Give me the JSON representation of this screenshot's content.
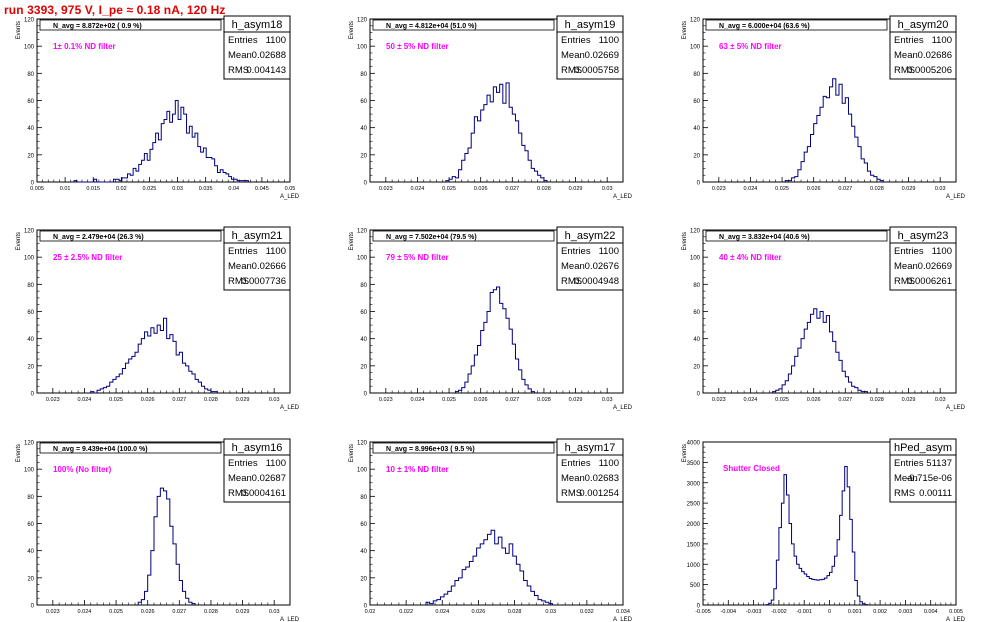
{
  "header": {
    "run_title": "run 3393,   975 V, I_pe ≈ 0.18 nA, 120 Hz"
  },
  "colors": {
    "hist_line": "#000080",
    "title_red": "#e00000",
    "annotation_magenta": "#ff00ff"
  },
  "chart_data": [
    {
      "type": "histogram",
      "name": "h_asym18",
      "ylabel": "Events",
      "xlabel": "A_LED",
      "ylim": [
        0,
        120
      ],
      "yticks": [
        0,
        20,
        40,
        60,
        80,
        100,
        120
      ],
      "xlim": [
        0.005,
        0.05
      ],
      "xticks": [
        0.005,
        0.01,
        0.015,
        0.02,
        0.025,
        0.03,
        0.035,
        0.04,
        0.045,
        0.05
      ],
      "xtick_labels": [
        "0.005",
        "0.01",
        "0.015",
        "0.02",
        "0.025",
        "0.03",
        "0.035",
        "0.04",
        "0.045",
        "0.05"
      ],
      "stats": {
        "title": "h_asym18",
        "rows": [
          [
            "Entries",
            "1100"
          ],
          [
            "Mean",
            "0.02688"
          ],
          [
            "RMS",
            "0.004143"
          ]
        ]
      },
      "n_avg": "N_avg = 8.872e+02 ( 0.9 %)",
      "filter": "1± 0.1% ND filter",
      "bins": {
        "start": 0.0116,
        "width": 0.0005,
        "counts": [
          1,
          0,
          0,
          0,
          0,
          0,
          0,
          2,
          0,
          0,
          0,
          0,
          0,
          0,
          2,
          2,
          1,
          3,
          3,
          6,
          5,
          10,
          8,
          13,
          16,
          21,
          16,
          24,
          29,
          36,
          31,
          43,
          46,
          52,
          44,
          50,
          60,
          46,
          55,
          50,
          36,
          41,
          33,
          36,
          26,
          22,
          25,
          18,
          18,
          17,
          12,
          7,
          9,
          7,
          6,
          4,
          2,
          2,
          1,
          1,
          1,
          1
        ]
      }
    },
    {
      "type": "histogram",
      "name": "h_asym19",
      "ylabel": "Events",
      "xlabel": "A_LED",
      "ylim": [
        0,
        120
      ],
      "yticks": [
        0,
        20,
        40,
        60,
        80,
        100,
        120
      ],
      "xlim": [
        0.0225,
        0.0305
      ],
      "xticks": [
        0.023,
        0.024,
        0.025,
        0.026,
        0.027,
        0.028,
        0.029,
        0.03
      ],
      "xtick_labels": [
        "0.023",
        "0.024",
        "0.025",
        "0.026",
        "0.027",
        "0.028",
        "0.029",
        "0.03"
      ],
      "stats": {
        "title": "h_asym19",
        "rows": [
          [
            "Entries",
            "1100"
          ],
          [
            "Mean",
            "0.02669"
          ],
          [
            "RMS",
            "0.0005758"
          ]
        ]
      },
      "n_avg": "N_avg = 4.812e+04 (51.0 %)",
      "filter": "50 ± 5% ND filter",
      "bins": {
        "start": 0.0249,
        "width": 0.0001,
        "counts": [
          1,
          2,
          4,
          3,
          9,
          16,
          21,
          25,
          36,
          48,
          45,
          53,
          57,
          64,
          59,
          70,
          66,
          72,
          58,
          73,
          55,
          50,
          45,
          36,
          27,
          23,
          16,
          10,
          8,
          5,
          3,
          1
        ]
      }
    },
    {
      "type": "histogram",
      "name": "h_asym20",
      "ylabel": "Events",
      "xlabel": "A_LED",
      "ylim": [
        0,
        120
      ],
      "yticks": [
        0,
        20,
        40,
        60,
        80,
        100,
        120
      ],
      "xlim": [
        0.0225,
        0.0305
      ],
      "xticks": [
        0.023,
        0.024,
        0.025,
        0.026,
        0.027,
        0.028,
        0.029,
        0.03
      ],
      "xtick_labels": [
        "0.023",
        "0.024",
        "0.025",
        "0.026",
        "0.027",
        "0.028",
        "0.029",
        "0.03"
      ],
      "stats": {
        "title": "h_asym20",
        "rows": [
          [
            "Entries",
            "1100"
          ],
          [
            "Mean",
            "0.02686"
          ],
          [
            "RMS",
            "0.0005206"
          ]
        ]
      },
      "n_avg": "N_avg = 6.000e+04 (63.6 %)",
      "filter": "63 ± 5% ND filter",
      "bins": {
        "start": 0.0251,
        "width": 0.0001,
        "counts": [
          1,
          1,
          3,
          4,
          9,
          15,
          22,
          26,
          35,
          43,
          49,
          55,
          63,
          62,
          70,
          76,
          64,
          72,
          58,
          62,
          50,
          41,
          33,
          26,
          17,
          14,
          8,
          5,
          4,
          2,
          1
        ]
      }
    },
    {
      "type": "histogram",
      "name": "h_asym21",
      "ylabel": "Events",
      "xlabel": "A_LED",
      "ylim": [
        0,
        120
      ],
      "yticks": [
        0,
        20,
        40,
        60,
        80,
        100,
        120
      ],
      "xlim": [
        0.0225,
        0.0305
      ],
      "xticks": [
        0.023,
        0.024,
        0.025,
        0.026,
        0.027,
        0.028,
        0.029,
        0.03
      ],
      "xtick_labels": [
        "0.023",
        "0.024",
        "0.025",
        "0.026",
        "0.027",
        "0.028",
        "0.029",
        "0.03"
      ],
      "stats": {
        "title": "h_asym21",
        "rows": [
          [
            "Entries",
            "1100"
          ],
          [
            "Mean",
            "0.02666"
          ],
          [
            "RMS",
            "0.0007736"
          ]
        ]
      },
      "n_avg": "N_avg = 2.479e+04 (26.3 %)",
      "filter": "25 ± 2.5% ND filter",
      "bins": {
        "start": 0.0242,
        "width": 0.0001,
        "counts": [
          1,
          0,
          2,
          3,
          4,
          5,
          8,
          10,
          12,
          14,
          18,
          22,
          25,
          27,
          30,
          36,
          40,
          45,
          42,
          48,
          44,
          50,
          46,
          55,
          40,
          43,
          38,
          28,
          30,
          22,
          20,
          16,
          14,
          10,
          8,
          5,
          3,
          2,
          1,
          1
        ]
      }
    },
    {
      "type": "histogram",
      "name": "h_asym22",
      "ylabel": "Events",
      "xlabel": "A_LED",
      "ylim": [
        0,
        120
      ],
      "yticks": [
        0,
        20,
        40,
        60,
        80,
        100,
        120
      ],
      "xlim": [
        0.0225,
        0.0305
      ],
      "xticks": [
        0.023,
        0.024,
        0.025,
        0.026,
        0.027,
        0.028,
        0.029,
        0.03
      ],
      "xtick_labels": [
        "0.023",
        "0.024",
        "0.025",
        "0.026",
        "0.027",
        "0.028",
        "0.029",
        "0.03"
      ],
      "stats": {
        "title": "h_asym22",
        "rows": [
          [
            "Entries",
            "1100"
          ],
          [
            "Mean",
            "0.02676"
          ],
          [
            "RMS",
            "0.0004948"
          ]
        ]
      },
      "n_avg": "N_avg = 7.502e+04 (79.5 %)",
      "filter": "79 ± 5% ND filter",
      "bins": {
        "start": 0.0252,
        "width": 0.0001,
        "counts": [
          1,
          2,
          4,
          8,
          14,
          20,
          28,
          35,
          46,
          52,
          60,
          74,
          76,
          78,
          66,
          62,
          55,
          47,
          36,
          25,
          17,
          10,
          6,
          3,
          1
        ]
      }
    },
    {
      "type": "histogram",
      "name": "h_asym23",
      "ylabel": "Events",
      "xlabel": "A_LED",
      "ylim": [
        0,
        120
      ],
      "yticks": [
        0,
        20,
        40,
        60,
        80,
        100,
        120
      ],
      "xlim": [
        0.0225,
        0.0305
      ],
      "xticks": [
        0.023,
        0.024,
        0.025,
        0.026,
        0.027,
        0.028,
        0.029,
        0.03
      ],
      "xtick_labels": [
        "0.023",
        "0.024",
        "0.025",
        "0.026",
        "0.027",
        "0.028",
        "0.029",
        "0.03"
      ],
      "stats": {
        "title": "h_asym23",
        "rows": [
          [
            "Entries",
            "1100"
          ],
          [
            "Mean",
            "0.02669"
          ],
          [
            "RMS",
            "0.0006261"
          ]
        ]
      },
      "n_avg": "N_avg = 3.832e+04 (40.6 %)",
      "filter": "40 ± 4% ND filter",
      "bins": {
        "start": 0.0247,
        "width": 0.0001,
        "counts": [
          1,
          2,
          3,
          6,
          9,
          14,
          20,
          27,
          33,
          40,
          47,
          52,
          58,
          62,
          55,
          60,
          52,
          57,
          45,
          38,
          30,
          24,
          16,
          12,
          8,
          5,
          4,
          2,
          1,
          1
        ]
      }
    },
    {
      "type": "histogram",
      "name": "h_asym16",
      "ylabel": "Events",
      "xlabel": "A_LED",
      "ylim": [
        0,
        120
      ],
      "yticks": [
        0,
        20,
        40,
        60,
        80,
        100,
        120
      ],
      "xlim": [
        0.0225,
        0.0305
      ],
      "xticks": [
        0.023,
        0.024,
        0.025,
        0.026,
        0.027,
        0.028,
        0.029,
        0.03
      ],
      "xtick_labels": [
        "0.023",
        "0.024",
        "0.025",
        "0.026",
        "0.027",
        "0.028",
        "0.029",
        "0.03"
      ],
      "stats": {
        "title": "h_asym16",
        "rows": [
          [
            "Entries",
            "1100"
          ],
          [
            "Mean",
            "0.02687"
          ],
          [
            "RMS",
            "0.0004161"
          ]
        ]
      },
      "n_avg": "N_avg = 9.439e+04 (100.0 %)",
      "filter": "100% (No filter)",
      "bins": {
        "start": 0.0257,
        "width": 0.0001,
        "counts": [
          2,
          4,
          10,
          22,
          40,
          65,
          80,
          86,
          84,
          78,
          58,
          45,
          30,
          18,
          10,
          5,
          2,
          1
        ]
      }
    },
    {
      "type": "histogram",
      "name": "h_asym17",
      "ylabel": "Events",
      "xlabel": "A_LED",
      "ylim": [
        0,
        120
      ],
      "yticks": [
        0,
        20,
        40,
        60,
        80,
        100,
        120
      ],
      "xlim": [
        0.02,
        0.034
      ],
      "xticks": [
        0.02,
        0.022,
        0.024,
        0.026,
        0.028,
        0.03,
        0.032,
        0.034
      ],
      "xtick_labels": [
        "0.02",
        "0.022",
        "0.024",
        "0.026",
        "0.028",
        "0.03",
        "0.032",
        "0.034"
      ],
      "stats": {
        "title": "h_asym17",
        "rows": [
          [
            "Entries",
            "1100"
          ],
          [
            "Mean",
            "0.02683"
          ],
          [
            "RMS",
            "0.001254"
          ]
        ]
      },
      "n_avg": "N_avg = 8.996e+03 ( 9.5 %)",
      "filter": "10 ± 1% ND filter",
      "bins": {
        "start": 0.0231,
        "width": 0.0002,
        "counts": [
          2,
          1,
          3,
          4,
          6,
          8,
          10,
          14,
          18,
          20,
          26,
          28,
          32,
          36,
          42,
          45,
          48,
          52,
          55,
          45,
          50,
          42,
          38,
          45,
          36,
          30,
          25,
          18,
          14,
          10,
          7,
          4,
          3,
          2,
          1
        ]
      }
    },
    {
      "type": "histogram",
      "name": "hPed_asym",
      "ylabel": "Events",
      "xlabel": "A_LED",
      "ylim": [
        0,
        4000
      ],
      "yticks": [
        0,
        500,
        1000,
        1500,
        2000,
        2500,
        3000,
        3500,
        4000
      ],
      "xlim": [
        -0.005,
        0.005
      ],
      "xticks": [
        -0.005,
        -0.004,
        -0.003,
        -0.002,
        -0.001,
        0,
        0.001,
        0.002,
        0.003,
        0.004,
        0.005
      ],
      "xtick_labels": [
        "-0.005",
        "-0.004",
        "-0.003",
        "-0.002",
        "-0.001",
        "0",
        "0.001",
        "0.002",
        "0.003",
        "0.004",
        "0.005"
      ],
      "stats": {
        "title": "hPed_asym",
        "rows": [
          [
            "Entries",
            "51137"
          ],
          [
            "Mean",
            "-9.715e-06"
          ],
          [
            "RMS",
            "0.00111"
          ]
        ]
      },
      "n_avg": "",
      "filter": "Shutter Closed",
      "bins": {
        "start": -0.0025,
        "width": 0.0001,
        "counts": [
          10,
          40,
          120,
          400,
          1100,
          1900,
          2500,
          3200,
          2700,
          2000,
          1500,
          1200,
          1000,
          900,
          820,
          760,
          700,
          650,
          630,
          620,
          610,
          620,
          630,
          660,
          720,
          800,
          950,
          1200,
          1600,
          2200,
          2800,
          3400,
          2900,
          2100,
          1300,
          600,
          220,
          80,
          30,
          10
        ]
      }
    }
  ]
}
